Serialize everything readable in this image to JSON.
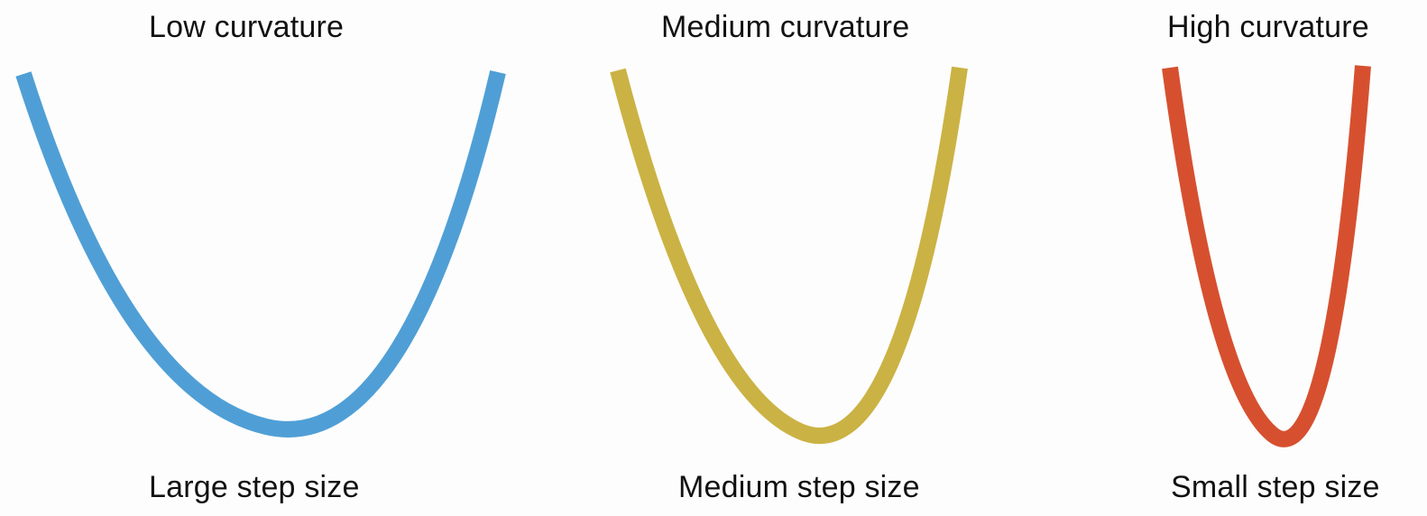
{
  "panels": [
    {
      "curvature_label": "Low curvature",
      "step_label": "Large step size",
      "color": "#4f9fd6"
    },
    {
      "curvature_label": "Medium curvature",
      "step_label": "Medium step size",
      "color": "#cbb244"
    },
    {
      "curvature_label": "High curvature",
      "step_label": "Small step size",
      "color": "#d6502f"
    }
  ]
}
